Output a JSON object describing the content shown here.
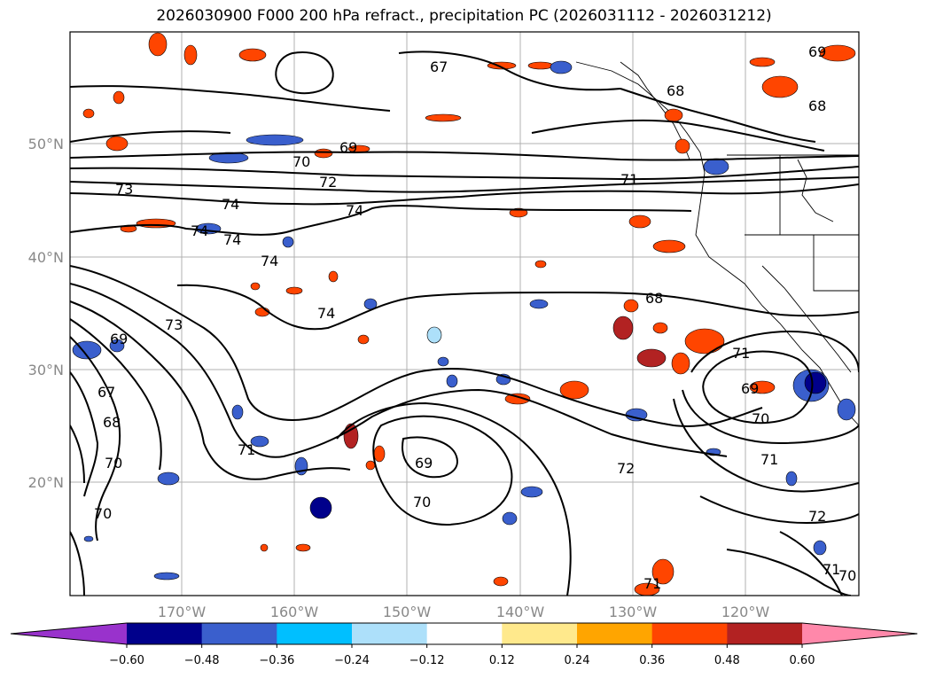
{
  "title": "2026030900 F000 200 hPa refract., precipitation PC (2026031112 - 2026031212)",
  "lat_labels": [
    "50°N",
    "40°N",
    "30°N",
    "20°N"
  ],
  "lon_labels": [
    "170°W",
    "160°W",
    "150°W",
    "140°W",
    "130°W",
    "120°W"
  ],
  "colorbar": {
    "ticks": [
      "−0.60",
      "−0.48",
      "−0.36",
      "−0.24",
      "−0.12",
      "0.12",
      "0.24",
      "0.36",
      "0.48",
      "0.60"
    ],
    "colors": [
      "#9932CC",
      "#00008B",
      "#3A5FCD",
      "#00BFFF",
      "#ADE0FA",
      "#FFFFFF",
      "#FFE98C",
      "#FFA500",
      "#FF4500",
      "#B22222",
      "#FF88AA"
    ]
  },
  "contour_labels": [
    "67",
    "68",
    "69",
    "70",
    "71",
    "72",
    "73",
    "74",
    "74",
    "74",
    "74",
    "74",
    "73",
    "69",
    "67",
    "68",
    "70",
    "70",
    "71",
    "69",
    "70",
    "72",
    "74",
    "71",
    "69",
    "70",
    "71",
    "72",
    "71",
    "71",
    "69",
    "68",
    "68",
    "70"
  ]
}
